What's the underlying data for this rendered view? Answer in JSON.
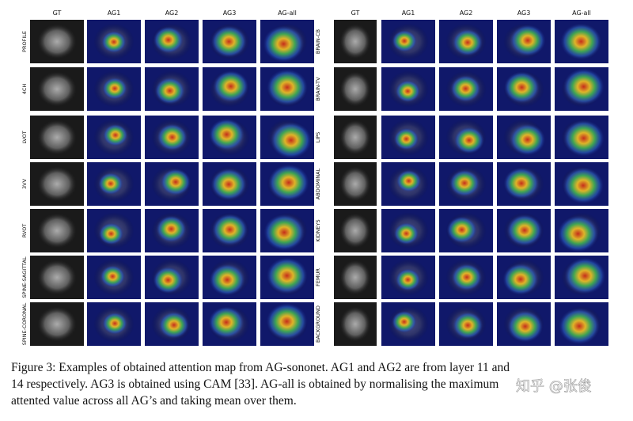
{
  "figure": {
    "left_headers": [
      "GT",
      "AG1",
      "AG2",
      "AG3",
      "AG-all"
    ],
    "right_headers": [
      "GT",
      "AG1",
      "AG2",
      "AG3",
      "AG-all"
    ],
    "left_rows": [
      "PROFILE",
      "4CH",
      "LVOT",
      "3VV",
      "RVOT",
      "SPINE-SAGITTAL",
      "SPINE-CORONAL"
    ],
    "right_rows": [
      "BRAIN-CB",
      "BRAIN-TV",
      "LIPS",
      "ABDOMINAL",
      "KIDNEYS",
      "FEMUR",
      "BACKGROUND"
    ]
  },
  "caption_lines": [
    "Figure 3: Examples of obtained attention map from AG-sononet. AG1 and AG2 are from layer 11 and",
    "14 respectively. AG3 is obtained using CAM [33]. AG-all is obtained by normalising the maximum",
    "attented value across all AG’s and taking mean over them."
  ],
  "watermark": "知乎 @张俊"
}
